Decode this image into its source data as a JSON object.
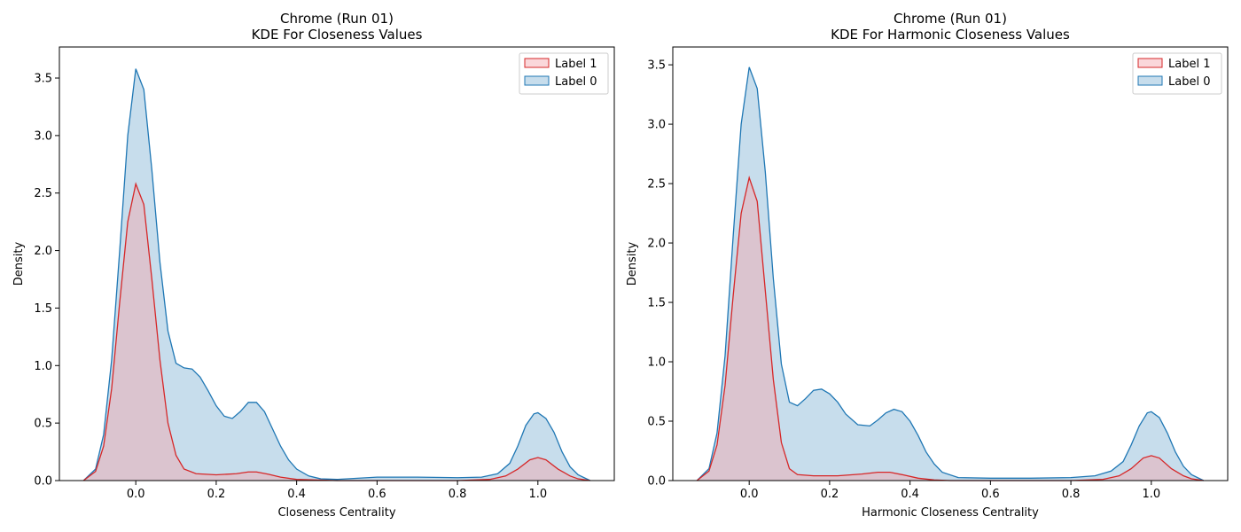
{
  "chart_data": [
    {
      "type": "area",
      "title": "Chrome (Run 01)",
      "subtitle": "KDE For Closeness Values",
      "xlabel": "Closeness Centrality",
      "ylabel": "Density",
      "xlim": [
        -0.19,
        1.19
      ],
      "ylim": [
        0,
        3.77
      ],
      "xticks": [
        0.0,
        0.2,
        0.4,
        0.6,
        0.8,
        1.0
      ],
      "xtick_labels": [
        "0.0",
        "0.2",
        "0.4",
        "0.6",
        "0.8",
        "1.0"
      ],
      "yticks": [
        0.0,
        0.5,
        1.0,
        1.5,
        2.0,
        2.5,
        3.0,
        3.5
      ],
      "ytick_labels": [
        "0.0",
        "0.5",
        "1.0",
        "1.5",
        "2.0",
        "2.5",
        "3.0",
        "3.5"
      ],
      "legend_position": "top-right",
      "series": [
        {
          "name": "Label 0",
          "color": "#1f77b4",
          "fill": "#1f77b4",
          "points": [
            [
              -0.13,
              0.0
            ],
            [
              -0.1,
              0.1
            ],
            [
              -0.08,
              0.4
            ],
            [
              -0.06,
              1.05
            ],
            [
              -0.04,
              2.0
            ],
            [
              -0.02,
              3.0
            ],
            [
              0.0,
              3.58
            ],
            [
              0.02,
              3.4
            ],
            [
              0.04,
              2.7
            ],
            [
              0.06,
              1.9
            ],
            [
              0.08,
              1.3
            ],
            [
              0.1,
              1.02
            ],
            [
              0.12,
              0.98
            ],
            [
              0.14,
              0.97
            ],
            [
              0.16,
              0.9
            ],
            [
              0.18,
              0.78
            ],
            [
              0.2,
              0.65
            ],
            [
              0.22,
              0.56
            ],
            [
              0.24,
              0.54
            ],
            [
              0.26,
              0.6
            ],
            [
              0.28,
              0.68
            ],
            [
              0.3,
              0.68
            ],
            [
              0.32,
              0.6
            ],
            [
              0.34,
              0.45
            ],
            [
              0.36,
              0.3
            ],
            [
              0.38,
              0.18
            ],
            [
              0.4,
              0.1
            ],
            [
              0.43,
              0.04
            ],
            [
              0.46,
              0.015
            ],
            [
              0.5,
              0.01
            ],
            [
              0.6,
              0.03
            ],
            [
              0.7,
              0.03
            ],
            [
              0.8,
              0.025
            ],
            [
              0.86,
              0.03
            ],
            [
              0.9,
              0.06
            ],
            [
              0.93,
              0.15
            ],
            [
              0.95,
              0.3
            ],
            [
              0.97,
              0.48
            ],
            [
              0.99,
              0.58
            ],
            [
              1.0,
              0.59
            ],
            [
              1.02,
              0.54
            ],
            [
              1.04,
              0.42
            ],
            [
              1.06,
              0.25
            ],
            [
              1.08,
              0.12
            ],
            [
              1.1,
              0.05
            ],
            [
              1.13,
              0.0
            ]
          ]
        },
        {
          "name": "Label 1",
          "color": "#d62728",
          "fill": "#f4a6ae",
          "points": [
            [
              -0.13,
              0.0
            ],
            [
              -0.1,
              0.08
            ],
            [
              -0.08,
              0.3
            ],
            [
              -0.06,
              0.8
            ],
            [
              -0.04,
              1.55
            ],
            [
              -0.02,
              2.25
            ],
            [
              0.0,
              2.58
            ],
            [
              0.02,
              2.4
            ],
            [
              0.04,
              1.75
            ],
            [
              0.06,
              1.05
            ],
            [
              0.08,
              0.5
            ],
            [
              0.1,
              0.22
            ],
            [
              0.12,
              0.1
            ],
            [
              0.15,
              0.06
            ],
            [
              0.2,
              0.05
            ],
            [
              0.25,
              0.06
            ],
            [
              0.28,
              0.075
            ],
            [
              0.3,
              0.075
            ],
            [
              0.33,
              0.055
            ],
            [
              0.36,
              0.03
            ],
            [
              0.4,
              0.01
            ],
            [
              0.5,
              0.0
            ],
            [
              0.6,
              0.0
            ],
            [
              0.7,
              0.0
            ],
            [
              0.8,
              0.0
            ],
            [
              0.88,
              0.01
            ],
            [
              0.92,
              0.04
            ],
            [
              0.95,
              0.1
            ],
            [
              0.98,
              0.18
            ],
            [
              1.0,
              0.2
            ],
            [
              1.02,
              0.18
            ],
            [
              1.05,
              0.1
            ],
            [
              1.08,
              0.04
            ],
            [
              1.1,
              0.015
            ],
            [
              1.13,
              0.0
            ]
          ]
        }
      ],
      "draw_order": [
        "Label 0",
        "Label 1"
      ],
      "legend_order": [
        "Label 1",
        "Label 0"
      ]
    },
    {
      "type": "area",
      "title": "Chrome (Run 01)",
      "subtitle": "KDE For Harmonic Closeness Values",
      "xlabel": "Harmonic Closeness Centrality",
      "ylabel": "Density",
      "xlim": [
        -0.19,
        1.19
      ],
      "ylim": [
        0,
        3.65
      ],
      "xticks": [
        0.0,
        0.2,
        0.4,
        0.6,
        0.8,
        1.0
      ],
      "xtick_labels": [
        "0.0",
        "0.2",
        "0.4",
        "0.6",
        "0.8",
        "1.0"
      ],
      "yticks": [
        0.0,
        0.5,
        1.0,
        1.5,
        2.0,
        2.5,
        3.0,
        3.5
      ],
      "ytick_labels": [
        "0.0",
        "0.5",
        "1.0",
        "1.5",
        "2.0",
        "2.5",
        "3.0",
        "3.5"
      ],
      "legend_position": "top-right",
      "series": [
        {
          "name": "Label 0",
          "color": "#1f77b4",
          "fill": "#1f77b4",
          "points": [
            [
              -0.13,
              0.0
            ],
            [
              -0.1,
              0.1
            ],
            [
              -0.08,
              0.4
            ],
            [
              -0.06,
              1.05
            ],
            [
              -0.04,
              2.05
            ],
            [
              -0.02,
              3.0
            ],
            [
              0.0,
              3.48
            ],
            [
              0.02,
              3.3
            ],
            [
              0.04,
              2.6
            ],
            [
              0.06,
              1.7
            ],
            [
              0.08,
              0.98
            ],
            [
              0.1,
              0.66
            ],
            [
              0.12,
              0.63
            ],
            [
              0.14,
              0.69
            ],
            [
              0.16,
              0.76
            ],
            [
              0.18,
              0.77
            ],
            [
              0.2,
              0.73
            ],
            [
              0.22,
              0.66
            ],
            [
              0.24,
              0.56
            ],
            [
              0.27,
              0.47
            ],
            [
              0.3,
              0.46
            ],
            [
              0.32,
              0.51
            ],
            [
              0.34,
              0.57
            ],
            [
              0.36,
              0.6
            ],
            [
              0.38,
              0.58
            ],
            [
              0.4,
              0.5
            ],
            [
              0.42,
              0.38
            ],
            [
              0.44,
              0.24
            ],
            [
              0.46,
              0.14
            ],
            [
              0.48,
              0.07
            ],
            [
              0.52,
              0.025
            ],
            [
              0.6,
              0.02
            ],
            [
              0.7,
              0.02
            ],
            [
              0.8,
              0.025
            ],
            [
              0.86,
              0.04
            ],
            [
              0.9,
              0.08
            ],
            [
              0.93,
              0.16
            ],
            [
              0.95,
              0.3
            ],
            [
              0.97,
              0.46
            ],
            [
              0.99,
              0.57
            ],
            [
              1.0,
              0.58
            ],
            [
              1.02,
              0.53
            ],
            [
              1.04,
              0.4
            ],
            [
              1.06,
              0.24
            ],
            [
              1.08,
              0.12
            ],
            [
              1.1,
              0.05
            ],
            [
              1.13,
              0.0
            ]
          ]
        },
        {
          "name": "Label 1",
          "color": "#d62728",
          "fill": "#f4a6ae",
          "points": [
            [
              -0.13,
              0.0
            ],
            [
              -0.1,
              0.08
            ],
            [
              -0.08,
              0.3
            ],
            [
              -0.06,
              0.8
            ],
            [
              -0.04,
              1.55
            ],
            [
              -0.02,
              2.25
            ],
            [
              0.0,
              2.55
            ],
            [
              0.02,
              2.35
            ],
            [
              0.04,
              1.6
            ],
            [
              0.06,
              0.85
            ],
            [
              0.08,
              0.32
            ],
            [
              0.1,
              0.1
            ],
            [
              0.12,
              0.05
            ],
            [
              0.16,
              0.04
            ],
            [
              0.22,
              0.04
            ],
            [
              0.28,
              0.055
            ],
            [
              0.32,
              0.07
            ],
            [
              0.35,
              0.07
            ],
            [
              0.38,
              0.05
            ],
            [
              0.42,
              0.02
            ],
            [
              0.46,
              0.005
            ],
            [
              0.5,
              0.0
            ],
            [
              0.6,
              0.0
            ],
            [
              0.7,
              0.0
            ],
            [
              0.8,
              0.0
            ],
            [
              0.88,
              0.01
            ],
            [
              0.92,
              0.04
            ],
            [
              0.95,
              0.1
            ],
            [
              0.98,
              0.19
            ],
            [
              1.0,
              0.21
            ],
            [
              1.02,
              0.19
            ],
            [
              1.05,
              0.1
            ],
            [
              1.08,
              0.04
            ],
            [
              1.1,
              0.015
            ],
            [
              1.13,
              0.0
            ]
          ]
        }
      ],
      "draw_order": [
        "Label 0",
        "Label 1"
      ],
      "legend_order": [
        "Label 1",
        "Label 0"
      ]
    }
  ]
}
